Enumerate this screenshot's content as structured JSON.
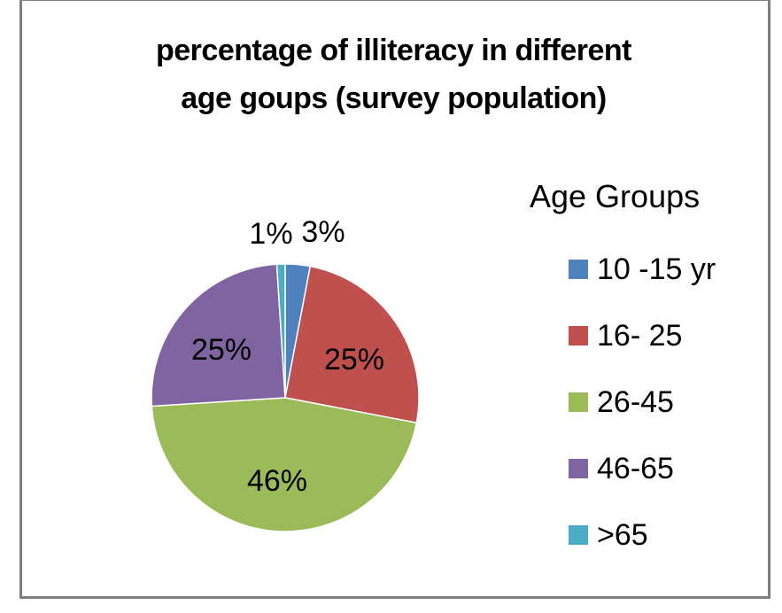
{
  "chart_data": {
    "type": "pie",
    "title": "percentage of illiteracy in different age goups (survey population)",
    "title_lines": [
      "percentage of illiteracy in different",
      "age goups (survey population)"
    ],
    "legend_title": "Age Groups",
    "legend_position": "right",
    "slices": [
      {
        "label": "10 -15 yr",
        "value": 3,
        "data_label": "3%",
        "color": "#4f81bd"
      },
      {
        "label": "16- 25",
        "value": 25,
        "data_label": "25%",
        "color": "#c0504d"
      },
      {
        "label": "26-45",
        "value": 46,
        "data_label": "46%",
        "color": "#9bbb59"
      },
      {
        "label": "46-65",
        "value": 25,
        "data_label": "25%",
        "color": "#8064a2"
      },
      {
        "label": ">65",
        "value": 1,
        "data_label": "1%",
        "color": "#4bacc6"
      }
    ]
  }
}
